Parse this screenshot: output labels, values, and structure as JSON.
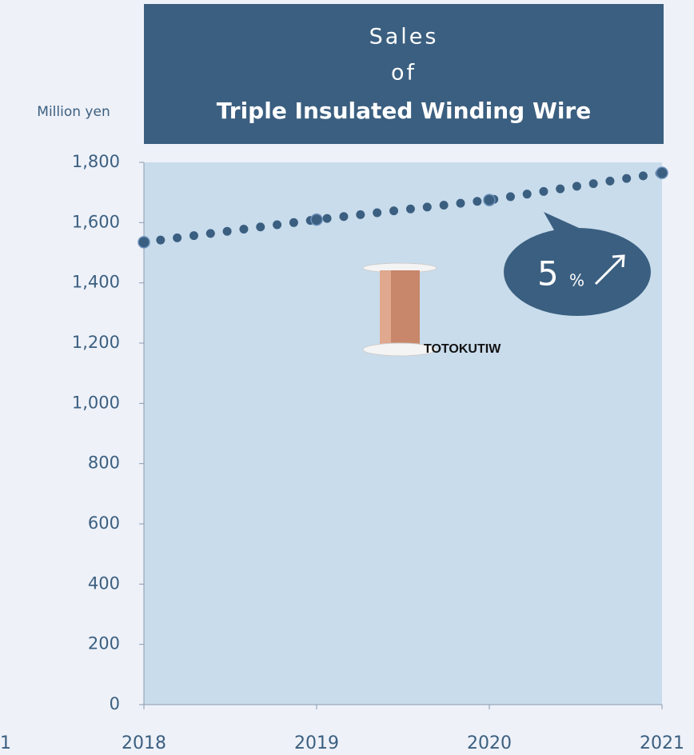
{
  "chart_data": {
    "type": "line",
    "title_lines": [
      "Sales",
      "of",
      "Triple Insulated Winding Wire"
    ],
    "y_label": "Million yen",
    "categories": [
      "2018",
      "2019",
      "2020",
      "2021"
    ],
    "series": [
      {
        "name": "Sales",
        "color": "#3b5f80",
        "values": [
          1535,
          1610,
          1675,
          1765
        ]
      }
    ],
    "ylim": [
      0,
      1800
    ],
    "yticks": [
      0,
      200,
      400,
      600,
      800,
      {
        "value": 1000,
        "label": "1,000"
      },
      {
        "value": 1200,
        "label": "1,200"
      },
      {
        "value": 1400,
        "label": "1,400"
      },
      {
        "value": 1600,
        "label": "1,600"
      },
      {
        "value": 1800,
        "label": "1,800"
      }
    ],
    "annotation": {
      "number": "5",
      "unit": "%"
    },
    "image_label": "TOTOKUTIW",
    "edge_label": "1"
  }
}
